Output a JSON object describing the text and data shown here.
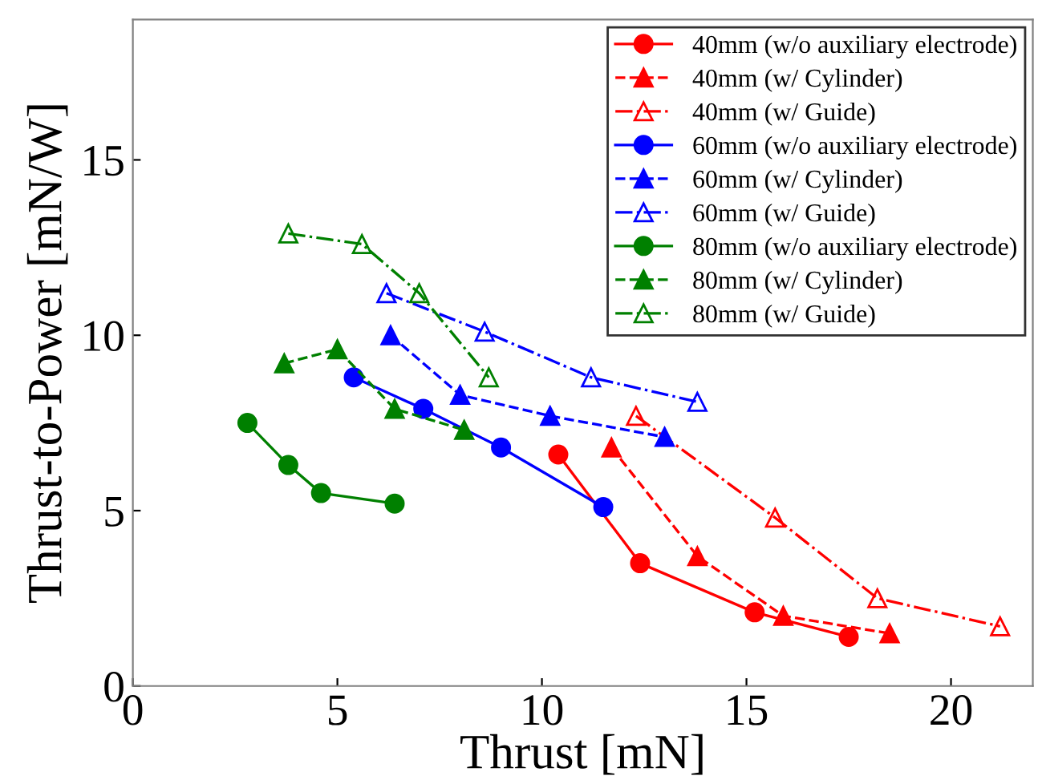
{
  "chart_data": {
    "type": "line",
    "xlabel": "Thrust [mN]",
    "ylabel": "Thrust-to-Power [mN/W]",
    "xlim": [
      0,
      22
    ],
    "ylim": [
      0,
      19
    ],
    "xticks": [
      0,
      5,
      10,
      15,
      20
    ],
    "yticks": [
      0,
      5,
      10,
      15
    ],
    "grid": false,
    "legend": "top right",
    "series": [
      {
        "name": "40mm (w/o auxiliary electrode)",
        "color": "#ff0000",
        "marker": "circle",
        "line_style": "solid",
        "x": [
          10.4,
          12.4,
          15.2,
          17.5
        ],
        "values": [
          6.6,
          3.5,
          2.1,
          1.4
        ]
      },
      {
        "name": "40mm (w/ Cylinder)",
        "color": "#ff0000",
        "marker": "triangle",
        "line_style": "dashed",
        "x": [
          11.7,
          13.8,
          15.9,
          18.5
        ],
        "values": [
          6.8,
          3.7,
          2.0,
          1.5
        ]
      },
      {
        "name": "40mm (w/ Guide)",
        "color": "#ff0000",
        "marker": "triangle",
        "line_style": "dashdot",
        "x": [
          12.3,
          15.7,
          18.2,
          21.2
        ],
        "values": [
          7.7,
          4.8,
          2.5,
          1.7
        ]
      },
      {
        "name": "60mm (w/o auxiliary electrode)",
        "color": "#0000ff",
        "marker": "circle",
        "line_style": "solid",
        "x": [
          5.4,
          7.1,
          9.0,
          11.5
        ],
        "values": [
          8.8,
          7.9,
          6.8,
          5.1
        ]
      },
      {
        "name": "60mm (w/ Cylinder)",
        "color": "#0000ff",
        "marker": "triangle",
        "line_style": "dashed",
        "x": [
          6.3,
          8.0,
          10.2,
          13.0
        ],
        "values": [
          10.0,
          8.3,
          7.7,
          7.1
        ]
      },
      {
        "name": "60mm (w/ Guide)",
        "color": "#0000ff",
        "marker": "triangle",
        "line_style": "dashdot",
        "x": [
          6.2,
          8.6,
          11.2,
          13.8
        ],
        "values": [
          11.2,
          10.1,
          8.8,
          8.1
        ]
      },
      {
        "name": "80mm (w/o auxiliary electrode)",
        "color": "#008000",
        "marker": "circle",
        "line_style": "solid",
        "x": [
          2.8,
          3.8,
          4.6,
          6.4
        ],
        "values": [
          7.5,
          6.3,
          5.5,
          5.2
        ]
      },
      {
        "name": "80mm (w/ Cylinder)",
        "color": "#008000",
        "marker": "triangle",
        "line_style": "dashed",
        "x": [
          3.7,
          5.0,
          6.4,
          8.1
        ],
        "values": [
          9.2,
          9.6,
          7.9,
          7.3
        ]
      },
      {
        "name": "80mm (w/ Guide)",
        "color": "#008000",
        "marker": "triangle",
        "line_style": "dashdot",
        "x": [
          3.8,
          5.6,
          7.0,
          8.7
        ],
        "values": [
          12.9,
          12.6,
          11.2,
          8.8
        ]
      }
    ]
  }
}
